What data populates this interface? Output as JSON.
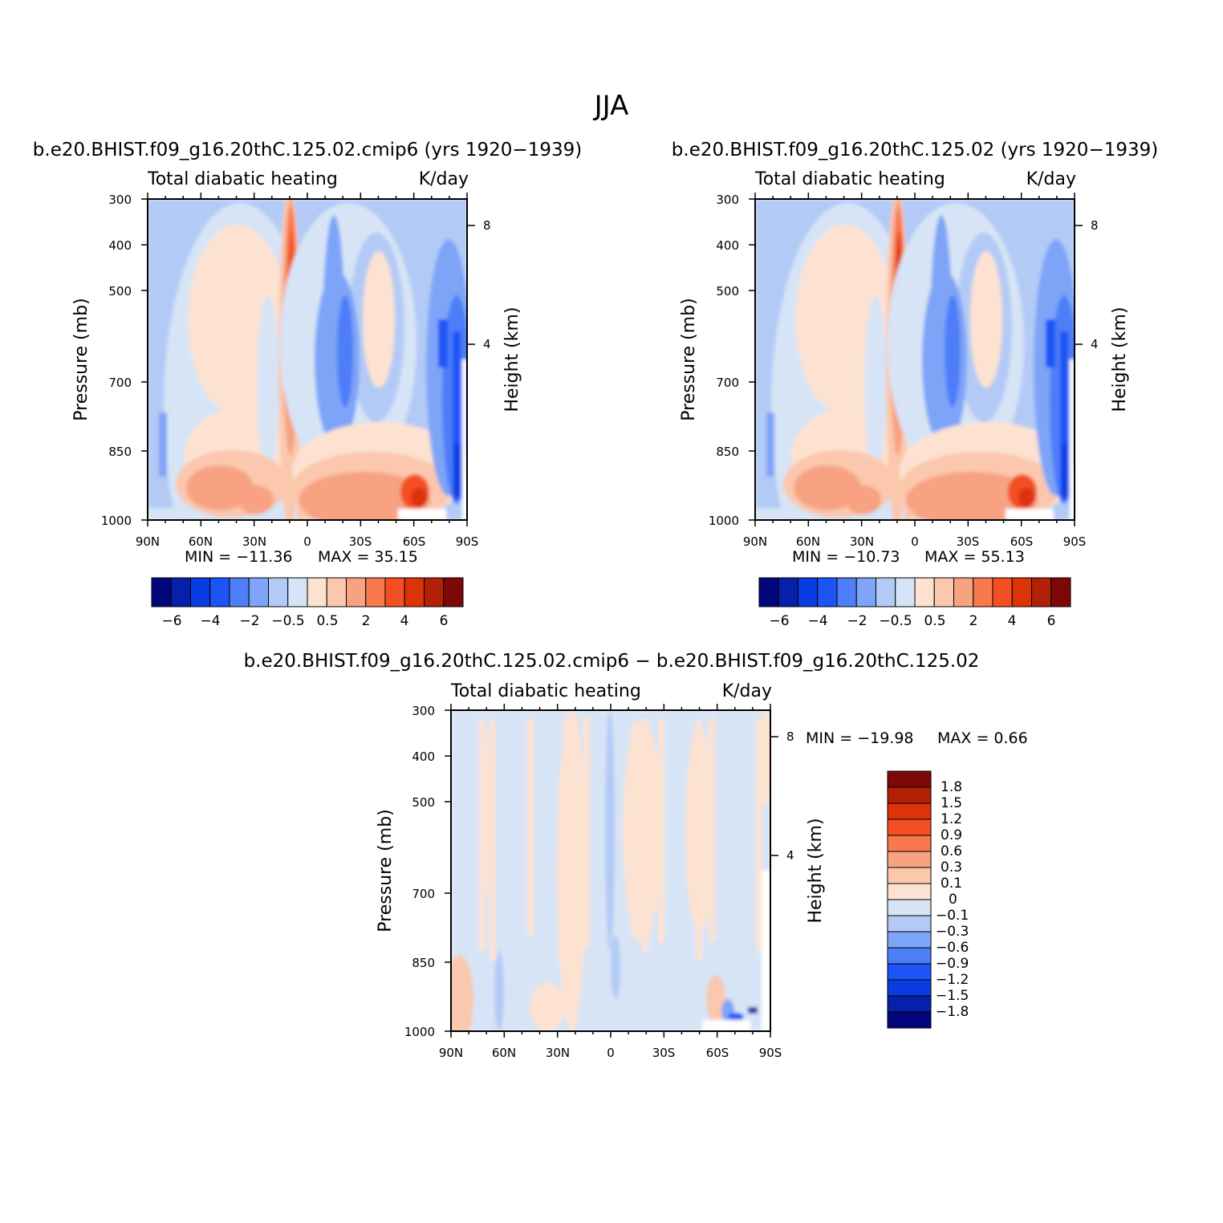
{
  "figure": {
    "title": "JJA"
  },
  "chart_data": [
    {
      "type": "heatmap",
      "panel": "left",
      "case_title": "b.e20.BHIST.f09_g16.20thC.125.02.cmip6 (yrs 1920-1939)",
      "variable": "Total diabatic heating",
      "units": "K/day",
      "xlabel": "",
      "ylabel": "Pressure (mb)",
      "ylabel_right": "Height (km)",
      "xticks": [
        "90N",
        "60N",
        "30N",
        "0",
        "30S",
        "60S",
        "90S"
      ],
      "yticks": [
        300,
        400,
        500,
        700,
        850,
        1000
      ],
      "yticks_right": [
        8,
        4
      ],
      "ylim": [
        1000,
        300
      ],
      "y_scale": "log-pressure",
      "min_text": "MIN = -11.36",
      "max_text": "MAX = 35.15",
      "min": -11.36,
      "max": 35.15,
      "colorbar": {
        "orientation": "horizontal",
        "labels": [
          "-6",
          "-4",
          "-2",
          "-0.5",
          "0.5",
          "2",
          "4",
          "6"
        ]
      }
    },
    {
      "type": "heatmap",
      "panel": "right",
      "case_title": "b.e20.BHIST.f09_g16.20thC.125.02 (yrs 1920-1939)",
      "variable": "Total diabatic heating",
      "units": "K/day",
      "xlabel": "",
      "ylabel": "Pressure (mb)",
      "ylabel_right": "Height (km)",
      "xticks": [
        "90N",
        "60N",
        "30N",
        "0",
        "30S",
        "60S",
        "90S"
      ],
      "yticks": [
        300,
        400,
        500,
        700,
        850,
        1000
      ],
      "yticks_right": [
        8,
        4
      ],
      "ylim": [
        1000,
        300
      ],
      "y_scale": "log-pressure",
      "min_text": "MIN = -10.73",
      "max_text": "MAX = 55.13",
      "min": -10.73,
      "max": 55.13,
      "colorbar": {
        "orientation": "horizontal",
        "labels": [
          "-6",
          "-4",
          "-2",
          "-0.5",
          "0.5",
          "2",
          "4",
          "6"
        ]
      }
    },
    {
      "type": "heatmap",
      "panel": "difference",
      "case_title": "b.e20.BHIST.f09_g16.20thC.125.02.cmip6 - b.e20.BHIST.f09_g16.20thC.125.02",
      "variable": "Total diabatic heating",
      "units": "K/day",
      "xlabel": "",
      "ylabel": "Pressure (mb)",
      "ylabel_right": "Height (km)",
      "xticks": [
        "90N",
        "60N",
        "30N",
        "0",
        "30S",
        "60S",
        "90S"
      ],
      "yticks": [
        300,
        400,
        500,
        700,
        850,
        1000
      ],
      "yticks_right": [
        8,
        4
      ],
      "ylim": [
        1000,
        300
      ],
      "y_scale": "log-pressure",
      "min_text": "MIN = -19.98",
      "max_text": "MAX = 0.66",
      "min": -19.98,
      "max": 0.66,
      "colorbar": {
        "orientation": "vertical",
        "labels": [
          "1.8",
          "1.5",
          "1.2",
          "0.9",
          "0.6",
          "0.3",
          "0.1",
          "0",
          "-0.1",
          "-0.3",
          "-0.6",
          "-0.9",
          "-1.2",
          "-1.5",
          "-1.8"
        ]
      }
    }
  ],
  "palette": {
    "colors": [
      "#04077c",
      "#0620aa",
      "#0a3de0",
      "#1c54f6",
      "#4d7ef8",
      "#7ea4f8",
      "#b3caf6",
      "#d6e4f6",
      "#fde2d2",
      "#fbc7ad",
      "#f7a281",
      "#f7794c",
      "#f34f22",
      "#dd3309",
      "#b22005",
      "#7e0807"
    ]
  }
}
